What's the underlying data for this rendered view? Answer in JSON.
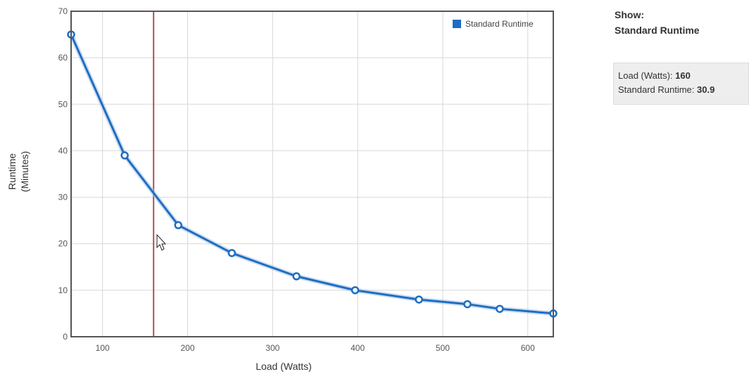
{
  "chart_data": {
    "type": "line",
    "xlabel": "Load (Watts)",
    "ylabel": [
      "Runtime",
      "(Minutes)"
    ],
    "xlim": [
      63,
      630
    ],
    "ylim": [
      0,
      70
    ],
    "x_ticks": [
      100,
      200,
      300,
      400,
      500,
      600
    ],
    "y_ticks": [
      0,
      10,
      20,
      30,
      40,
      50,
      60,
      70
    ],
    "grid": true,
    "legend_position": "top-right",
    "series": [
      {
        "name": "Standard Runtime",
        "color": "#1f6dc0",
        "x": [
          63,
          126,
          189,
          252,
          328,
          397,
          472,
          529,
          567,
          630
        ],
        "y": [
          65,
          39,
          24,
          18,
          13,
          10,
          8,
          7,
          6,
          5
        ]
      }
    ],
    "marker_x": 160,
    "marker_color": "#b05050"
  },
  "side": {
    "show_label": "Show:",
    "show_series": "Standard Runtime"
  },
  "tooltip": {
    "load_label": "Load (Watts): ",
    "load_value": "160",
    "runtime_label": "Standard Runtime: ",
    "runtime_value": "30.9"
  }
}
